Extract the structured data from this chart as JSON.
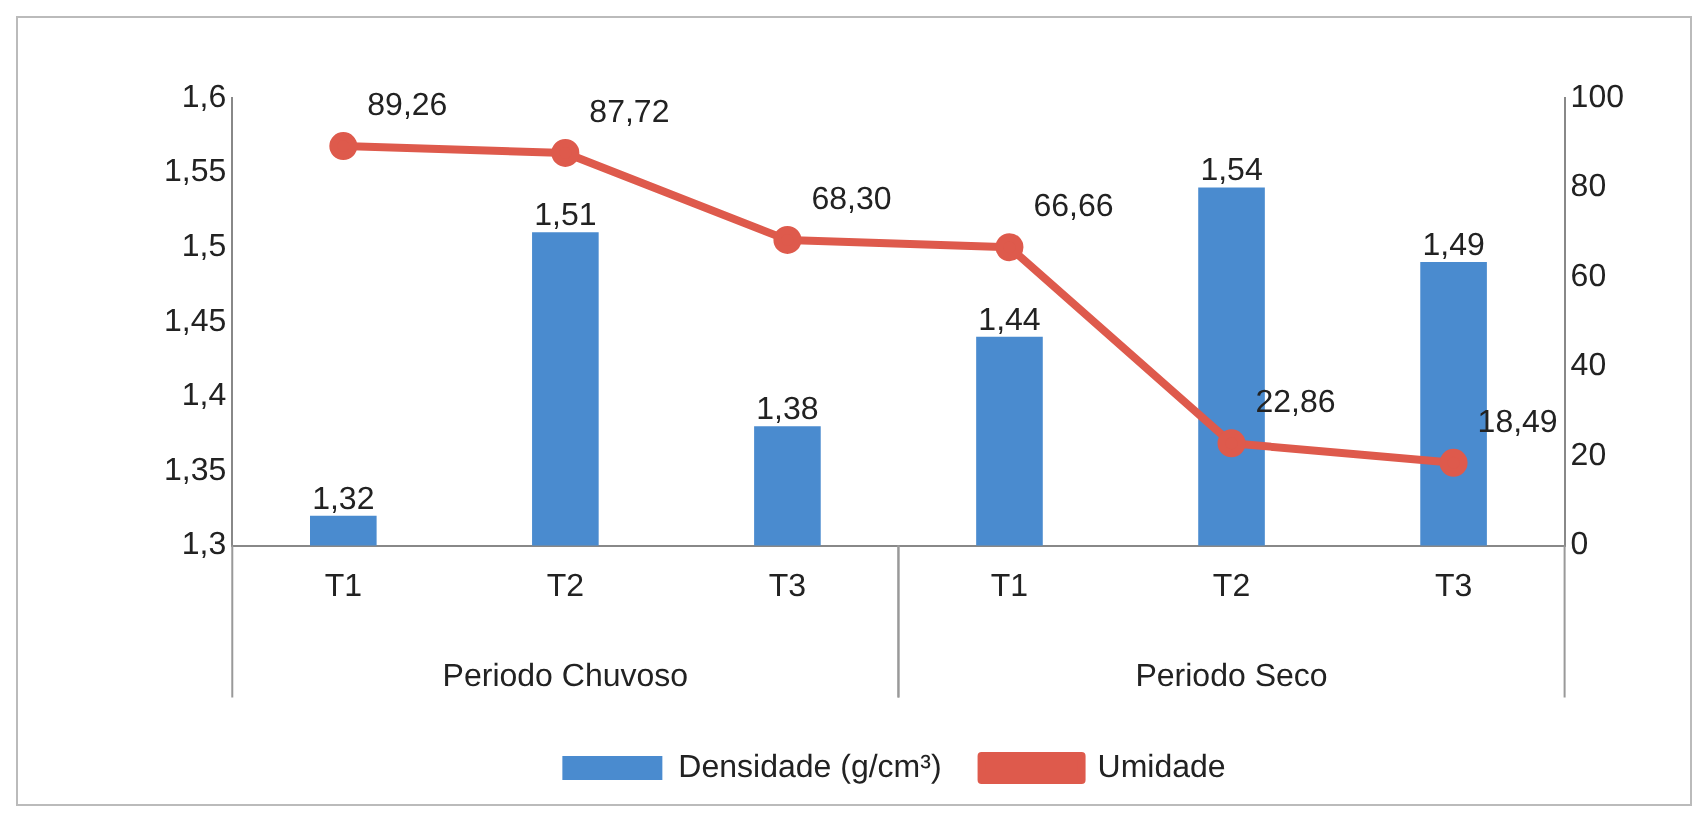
{
  "chart_data": {
    "type": "bar",
    "categories": [
      "T1",
      "T2",
      "T3",
      "T1",
      "T2",
      "T3"
    ],
    "series": [
      {
        "name": "Densidade (g/cm³)",
        "color": "#4a8bcf",
        "values": [
          1.32,
          1.51,
          1.38,
          1.44,
          1.54,
          1.49
        ],
        "value_labels": [
          "1,32",
          "1,51",
          "1,38",
          "1,44",
          "1,54",
          "1,49"
        ]
      },
      {
        "name": "Umidade",
        "type": "line",
        "axis": "y2",
        "color": "#de5a4c",
        "marker": "circle",
        "values": [
          89.26,
          87.72,
          68.3,
          66.66,
          22.86,
          18.49
        ],
        "value_labels": [
          "89,26",
          "87,72",
          "68,30",
          "66,66",
          "22,86",
          "18,49"
        ]
      }
    ],
    "ylim": [
      1.3,
      1.6
    ],
    "yticks": [
      {
        "value": 1.3,
        "label": "1,3"
      },
      {
        "value": 1.35,
        "label": "1,35"
      },
      {
        "value": 1.4,
        "label": "1,4"
      },
      {
        "value": 1.45,
        "label": "1,45"
      },
      {
        "value": 1.5,
        "label": "1,5"
      },
      {
        "value": 1.55,
        "label": "1,55"
      },
      {
        "value": 1.6,
        "label": "1,6"
      }
    ],
    "y2lim": [
      0,
      100
    ],
    "y2ticks": [
      0,
      20,
      40,
      60,
      80,
      100
    ],
    "annotations": [
      "Periodo Chuvoso",
      "Periodo Seco"
    ],
    "grid": false,
    "legend": "bottom"
  }
}
